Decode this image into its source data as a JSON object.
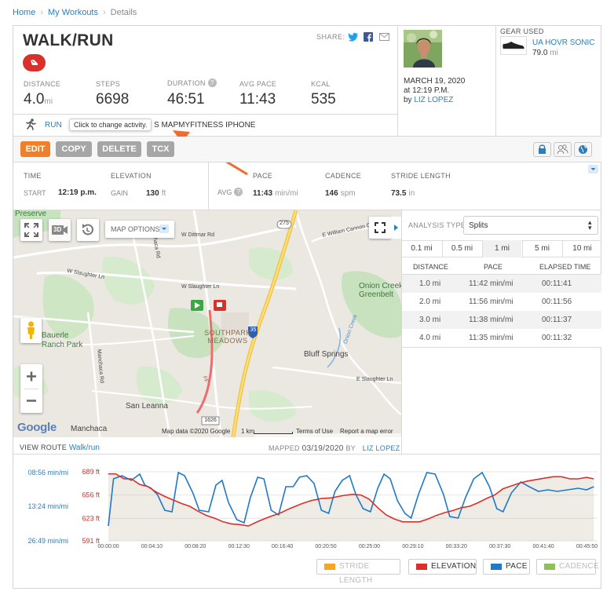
{
  "breadcrumb": {
    "home": "Home",
    "workouts": "My Workouts",
    "current": "Details"
  },
  "workout": {
    "title": "WALK/RUN",
    "share_label": "SHARE:",
    "stats": [
      {
        "label": "DISTANCE",
        "value": "4.0",
        "unit": "mi"
      },
      {
        "label": "STEPS",
        "value": "6698",
        "unit": ""
      },
      {
        "label": "DURATION",
        "value": "46:51",
        "unit": ""
      },
      {
        "label": "AVG PACE",
        "value": "11:43",
        "unit": ""
      },
      {
        "label": "KCAL",
        "value": "535",
        "unit": ""
      }
    ],
    "activity_link": "RUN",
    "tooltip": "Click to change activity.",
    "source_text": "S MAPMYFITNESS IPHONE"
  },
  "user": {
    "date": "MARCH 19, 2020",
    "time": "at 12:19 P.M.",
    "by_label": "by",
    "name": "LIZ LOPEZ"
  },
  "gear": {
    "heading": "GEAR USED",
    "name": "UA HOVR SONIC",
    "miles": "79.0",
    "unit": "mi"
  },
  "toolbar": {
    "edit": "EDIT",
    "copy": "COPY",
    "delete": "DELETE",
    "tcx": "TCX"
  },
  "summary": {
    "time_label": "TIME",
    "start_key": "START",
    "start_val": "12:19 p.m.",
    "elev_label": "ELEVATION",
    "gain_key": "GAIN",
    "gain_val": "130",
    "gain_unit": "ft",
    "pace_label": "PACE",
    "avg_key": "AVG",
    "pace_val": "11:43",
    "pace_unit": "min/mi",
    "cadence_label": "CADENCE",
    "cadence_val": "146",
    "cadence_unit": "spm",
    "stride_label": "STRIDE LENGTH",
    "stride_val": "73.5",
    "stride_unit": "in"
  },
  "map": {
    "options_label": "MAP OPTIONS",
    "btn_3d": "3D",
    "labels": {
      "preserve": "Preserve",
      "dittmar": "W Dittmar Rd",
      "slaughter_w": "W Slaughter Ln",
      "slaughter_w2": "W Slaughter Ln",
      "slaughter_e": "E Slaughter Ln",
      "william_cannon": "E William Cannon Dr",
      "onion_greenbelt": "Onion Creek Greenbelt",
      "onion_creek": "Onion Creek",
      "bauerle": "Bauerle Ranch Park",
      "southpark": "SOUTHPARK MEADOWS",
      "bluff": "Bluff Springs",
      "san_leanna": "San Leanna",
      "manchaca": "Manchaca",
      "manchaca_rd": "Manchaca Rd",
      "menchaca": "Menchaca Rd",
      "hw35": "35",
      "hw275": "275",
      "hw1626": "1626",
      "ff": "FF"
    },
    "attribution": "Map data ©2020 Google",
    "scale": "1 km",
    "terms": "Terms of Use",
    "report": "Report a map error",
    "google": "Google"
  },
  "route": {
    "label": "VIEW ROUTE",
    "link": "Walk/run",
    "mapped_label": "MAPPED",
    "mapped_date": "03/19/2020",
    "by": "BY",
    "user": "LIZ LOPEZ"
  },
  "analysis": {
    "label": "ANALYSIS TYPE:",
    "selected": "Splits",
    "tabs": [
      "0.1 mi",
      "0.5 mi",
      "1 mi",
      "5 mi",
      "10 mi"
    ],
    "active_tab": 2,
    "headers": [
      "DISTANCE",
      "PACE",
      "ELAPSED TIME"
    ],
    "rows": [
      [
        "1.0 mi",
        "11:42 min/mi",
        "00:11:41"
      ],
      [
        "2.0 mi",
        "11:56 min/mi",
        "00:11:56"
      ],
      [
        "3.0 mi",
        "11:38 min/mi",
        "00:11:37"
      ],
      [
        "4.0 mi",
        "11:35 min/mi",
        "00:11:32"
      ]
    ]
  },
  "chart_data": {
    "type": "line",
    "title": "",
    "x_ticks": [
      "00:00:00",
      "00:04:10",
      "00:08:20",
      "00:12:30",
      "00:16:40",
      "00:20:50",
      "00:25:00",
      "00:29:10",
      "00:33:20",
      "00:37:30",
      "00:41:40",
      "00:45:50"
    ],
    "xlim_min": [
      0,
      46.85
    ],
    "y_left_ticks": [
      "08:56 min/mi",
      "13:24 min/mi",
      "26:49 min/mi"
    ],
    "y_right_ticks": [
      "689 ft",
      "656 ft",
      "623 ft",
      "591 ft"
    ],
    "y_right_range_ft": [
      591,
      689
    ],
    "grid": true,
    "series": [
      {
        "name": "ELEVATION",
        "color": "#d9302b",
        "x_min": [
          0,
          0.7,
          1.5,
          2.2,
          3.0,
          3.8,
          4.6,
          5.4,
          6.2,
          7.0,
          7.8,
          8.6,
          9.4,
          10.2,
          11.0,
          11.8,
          12.6,
          13.4,
          14.4,
          15.4,
          16.4,
          17.4,
          18.4,
          19.4,
          20.4,
          21.4,
          22.4,
          23.4,
          24.2,
          25.0,
          25.8,
          26.6,
          27.4,
          28.2,
          29.0,
          29.8,
          30.6,
          31.4,
          32.2,
          33.0,
          33.8,
          34.6,
          35.4,
          36.2,
          37.0,
          37.8,
          38.6,
          39.4,
          40.2,
          41.0,
          41.8,
          42.6,
          43.4,
          44.2,
          45.0,
          45.8,
          46.5
        ],
        "values_ft": [
          686,
          686,
          679,
          679,
          671,
          668,
          660,
          654,
          649,
          644,
          640,
          633,
          627,
          623,
          618,
          615,
          614,
          612,
          619,
          625,
          630,
          637,
          643,
          648,
          651,
          652,
          655,
          657,
          656,
          650,
          638,
          628,
          622,
          618,
          618,
          618,
          622,
          627,
          631,
          634,
          638,
          640,
          645,
          651,
          656,
          665,
          669,
          673,
          676,
          678,
          680,
          682,
          682,
          679,
          679,
          681,
          679
        ]
      },
      {
        "name": "PACE",
        "color": "#1f78c8",
        "x_min": [
          0,
          0.5,
          1.3,
          2.2,
          3.0,
          3.5,
          4.1,
          4.7,
          5.4,
          6.1,
          6.7,
          7.3,
          8.1,
          8.7,
          9.6,
          10.3,
          10.9,
          11.5,
          12.3,
          13.0,
          13.6,
          14.3,
          14.9,
          15.6,
          16.3,
          17.0,
          17.7,
          18.3,
          19.0,
          19.7,
          20.4,
          21.1,
          21.7,
          22.4,
          23.1,
          23.7,
          24.4,
          25.1,
          25.8,
          26.4,
          27.0,
          27.7,
          28.4,
          29.0,
          29.7,
          30.5,
          31.3,
          32.1,
          32.7,
          33.5,
          34.2,
          35.0,
          35.8,
          36.5,
          37.2,
          37.8,
          38.6,
          39.5,
          40.3,
          41.2,
          42.1,
          43.0,
          44.0,
          45.0,
          45.8,
          46.5
        ],
        "pace_level_px_from_top": "see script"
      },
      {
        "name": "STRIDE LENGTH",
        "color": "#f5a623",
        "visible": false
      },
      {
        "name": "CADENCE",
        "color": "#8fbf5a",
        "visible": false
      }
    ],
    "legend": [
      "STRIDE LENGTH",
      "ELEVATION",
      "PACE",
      "CADENCE"
    ],
    "legend_position": "bottom-right"
  }
}
